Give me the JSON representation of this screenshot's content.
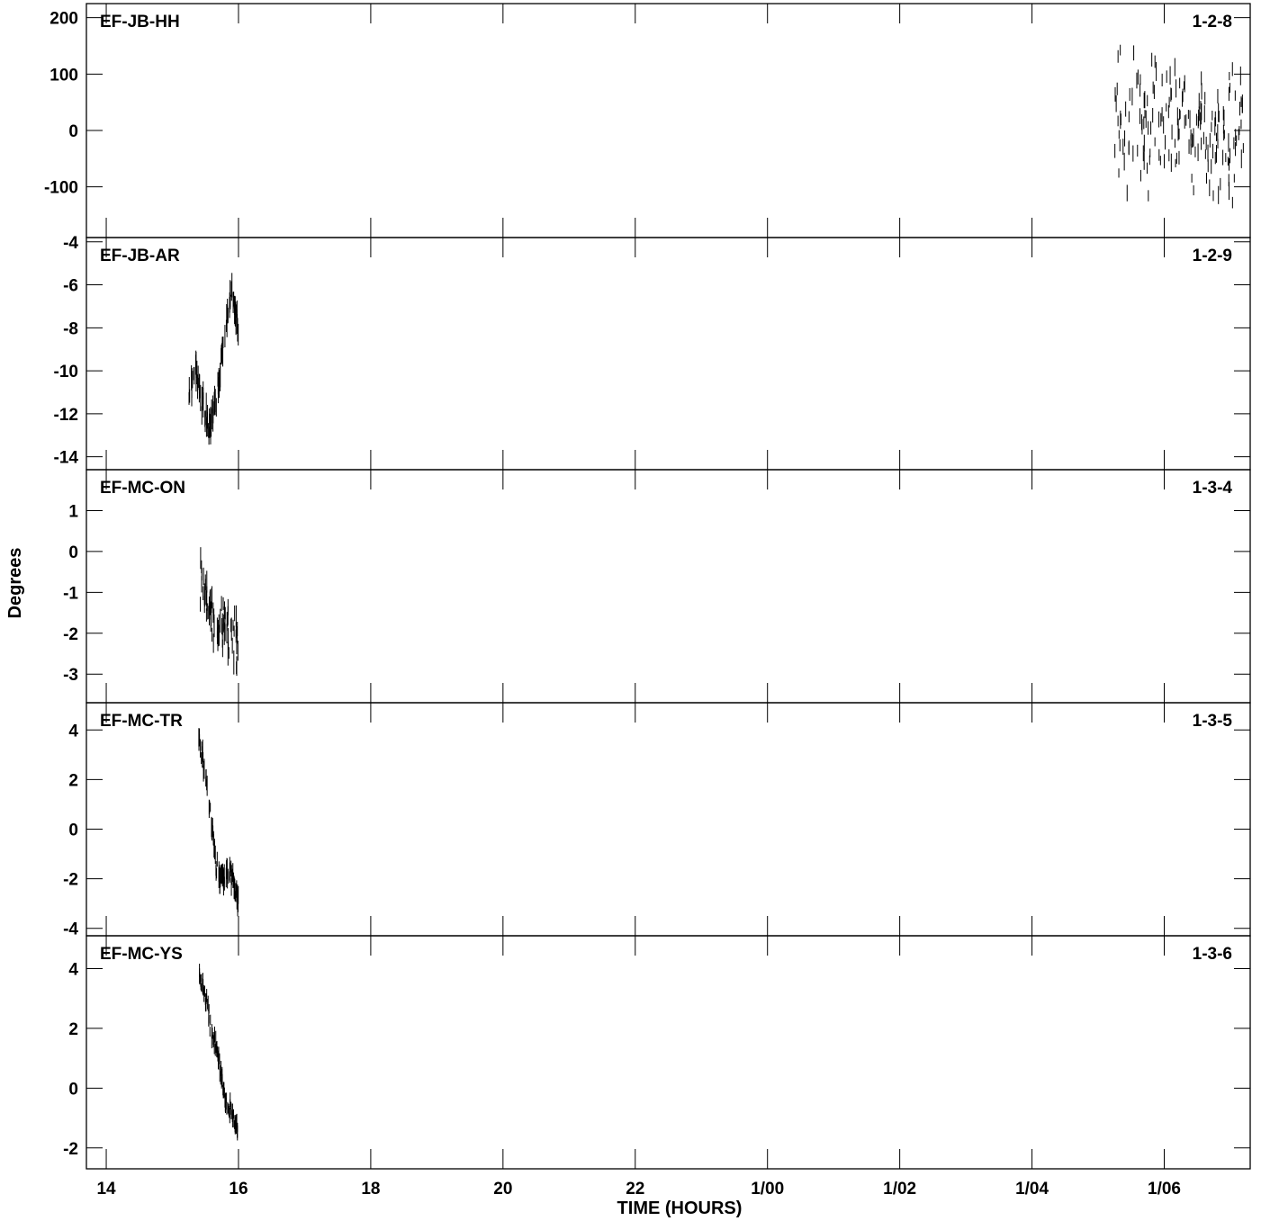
{
  "chart_data": {
    "type": "scatter",
    "xlabel": "TIME (HOURS)",
    "ylabel": "Degrees",
    "x_unit": "hours",
    "xlim": [
      13.7,
      31.3
    ],
    "x_ticks": [
      {
        "value": 14,
        "label": "14"
      },
      {
        "value": 16,
        "label": "16"
      },
      {
        "value": 18,
        "label": "18"
      },
      {
        "value": 20,
        "label": "20"
      },
      {
        "value": 22,
        "label": "22"
      },
      {
        "value": 24,
        "label": "1/00"
      },
      {
        "value": 26,
        "label": "1/02"
      },
      {
        "value": 28,
        "label": "1/04"
      },
      {
        "value": 30,
        "label": "1/06"
      }
    ],
    "panels": [
      {
        "label": "EF-JB-HH",
        "id": "1-2-8",
        "ylim": [
          -190,
          225
        ],
        "y_ticks": [
          200,
          100,
          0,
          -100
        ],
        "series": {
          "x_range": [
            29.25,
            31.2
          ],
          "trend": [
            [
              29.25,
              20
            ],
            [
              30.2,
              5
            ],
            [
              31.2,
              0
            ]
          ],
          "spread": 95,
          "error": 12,
          "points": 180
        }
      },
      {
        "label": "EF-JB-AR",
        "id": "1-2-9",
        "ylim": [
          -14.6,
          -3.8
        ],
        "y_ticks": [
          -4,
          -6,
          -8,
          -10,
          -12,
          -14
        ],
        "series": {
          "x_range": [
            15.25,
            16.0
          ],
          "trend": [
            [
              15.25,
              -11.0
            ],
            [
              15.35,
              -9.8
            ],
            [
              15.45,
              -11.5
            ],
            [
              15.55,
              -12.8
            ],
            [
              15.68,
              -11.0
            ],
            [
              15.8,
              -8.0
            ],
            [
              15.9,
              -6.2
            ],
            [
              16.0,
              -8.3
            ]
          ],
          "spread": 0.5,
          "error": 0.45,
          "points": 110
        }
      },
      {
        "label": "EF-MC-ON",
        "id": "1-3-4",
        "ylim": [
          -3.7,
          2.0
        ],
        "y_ticks": [
          1,
          0,
          -1,
          -2,
          -3
        ],
        "series": {
          "x_range": [
            15.42,
            16.0
          ],
          "trend": [
            [
              15.42,
              -0.6
            ],
            [
              15.55,
              -1.4
            ],
            [
              15.7,
              -1.9
            ],
            [
              15.85,
              -1.8
            ],
            [
              16.0,
              -2.2
            ]
          ],
          "spread": 0.55,
          "error": 0.22,
          "points": 80
        }
      },
      {
        "label": "EF-MC-TR",
        "id": "1-3-5",
        "ylim": [
          -4.3,
          5.1
        ],
        "y_ticks": [
          4,
          2,
          0,
          -2,
          -4
        ],
        "series": {
          "x_range": [
            15.4,
            16.0
          ],
          "trend": [
            [
              15.4,
              3.7
            ],
            [
              15.5,
              2.2
            ],
            [
              15.6,
              0.0
            ],
            [
              15.68,
              -1.8
            ],
            [
              15.8,
              -1.9
            ],
            [
              15.9,
              -1.8
            ],
            [
              16.0,
              -3.0
            ]
          ],
          "spread": 0.35,
          "error": 0.3,
          "points": 110
        }
      },
      {
        "label": "EF-MC-YS",
        "id": "1-3-6",
        "ylim": [
          -2.7,
          5.1
        ],
        "y_ticks": [
          4,
          2,
          0,
          -2
        ],
        "series": {
          "x_range": [
            15.4,
            16.0
          ],
          "trend": [
            [
              15.4,
              3.8
            ],
            [
              15.5,
              3.0
            ],
            [
              15.6,
              1.8
            ],
            [
              15.7,
              1.0
            ],
            [
              15.8,
              -0.5
            ],
            [
              15.9,
              -0.8
            ],
            [
              16.0,
              -1.5
            ]
          ],
          "spread": 0.25,
          "error": 0.2,
          "points": 110
        }
      }
    ]
  }
}
